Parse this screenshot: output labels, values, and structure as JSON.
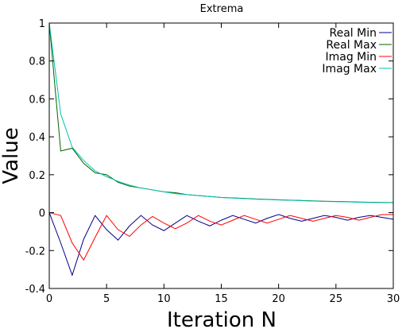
{
  "chart_data": {
    "type": "line",
    "title": "Extrema",
    "xlabel": "Iteration N",
    "ylabel": "Value",
    "xlim": [
      0,
      30
    ],
    "ylim": [
      -0.4,
      1
    ],
    "x_ticks": [
      0,
      5,
      10,
      15,
      20,
      25,
      30
    ],
    "x_tick_labels": [
      "0",
      "5",
      "10",
      "15",
      "20",
      "25",
      "30"
    ],
    "y_ticks": [
      -0.4,
      -0.2,
      0,
      0.2,
      0.4,
      0.6,
      0.8,
      1
    ],
    "y_tick_labels": [
      "-0.4",
      "-0.2",
      "0",
      "0.2",
      "0.4",
      "0.6",
      "0.8",
      "1"
    ],
    "grid": false,
    "legend_position": "top-right",
    "x": [
      0,
      1,
      2,
      3,
      4,
      5,
      6,
      7,
      8,
      9,
      10,
      11,
      12,
      13,
      14,
      15,
      16,
      17,
      18,
      19,
      20,
      21,
      22,
      23,
      24,
      25,
      26,
      27,
      28,
      29,
      30
    ],
    "series": [
      {
        "name": "Real Min",
        "color": "#00008b",
        "values": [
          0.0,
          -0.16,
          -0.33,
          -0.14,
          -0.015,
          -0.09,
          -0.145,
          -0.07,
          -0.015,
          -0.065,
          -0.095,
          -0.055,
          -0.015,
          -0.045,
          -0.07,
          -0.04,
          -0.015,
          -0.035,
          -0.055,
          -0.03,
          -0.01,
          -0.03,
          -0.045,
          -0.03,
          -0.015,
          -0.025,
          -0.04,
          -0.025,
          -0.015,
          -0.025,
          -0.035
        ]
      },
      {
        "name": "Real Max",
        "color": "#006400",
        "values": [
          1.0,
          0.325,
          0.34,
          0.26,
          0.21,
          0.2,
          0.16,
          0.14,
          0.13,
          0.12,
          0.11,
          0.105,
          0.095,
          0.09,
          0.085,
          0.08,
          0.078,
          0.075,
          0.072,
          0.07,
          0.068,
          0.066,
          0.064,
          0.062,
          0.06,
          0.059,
          0.058,
          0.056,
          0.055,
          0.054,
          0.053
        ]
      },
      {
        "name": "Imag Min",
        "color": "#ff0000",
        "values": [
          0.0,
          -0.015,
          -0.16,
          -0.25,
          -0.13,
          -0.015,
          -0.09,
          -0.125,
          -0.065,
          -0.02,
          -0.055,
          -0.085,
          -0.055,
          -0.015,
          -0.045,
          -0.065,
          -0.04,
          -0.015,
          -0.035,
          -0.055,
          -0.035,
          -0.015,
          -0.03,
          -0.045,
          -0.03,
          -0.015,
          -0.025,
          -0.04,
          -0.025,
          -0.01,
          -0.01
        ]
      },
      {
        "name": "Imag Max",
        "color": "#00c0b0",
        "values": [
          1.0,
          0.52,
          0.345,
          0.275,
          0.22,
          0.19,
          0.165,
          0.145,
          0.13,
          0.12,
          0.11,
          0.1,
          0.095,
          0.09,
          0.085,
          0.08,
          0.077,
          0.074,
          0.071,
          0.069,
          0.067,
          0.065,
          0.063,
          0.061,
          0.059,
          0.058,
          0.057,
          0.055,
          0.054,
          0.053,
          0.052
        ]
      }
    ]
  }
}
